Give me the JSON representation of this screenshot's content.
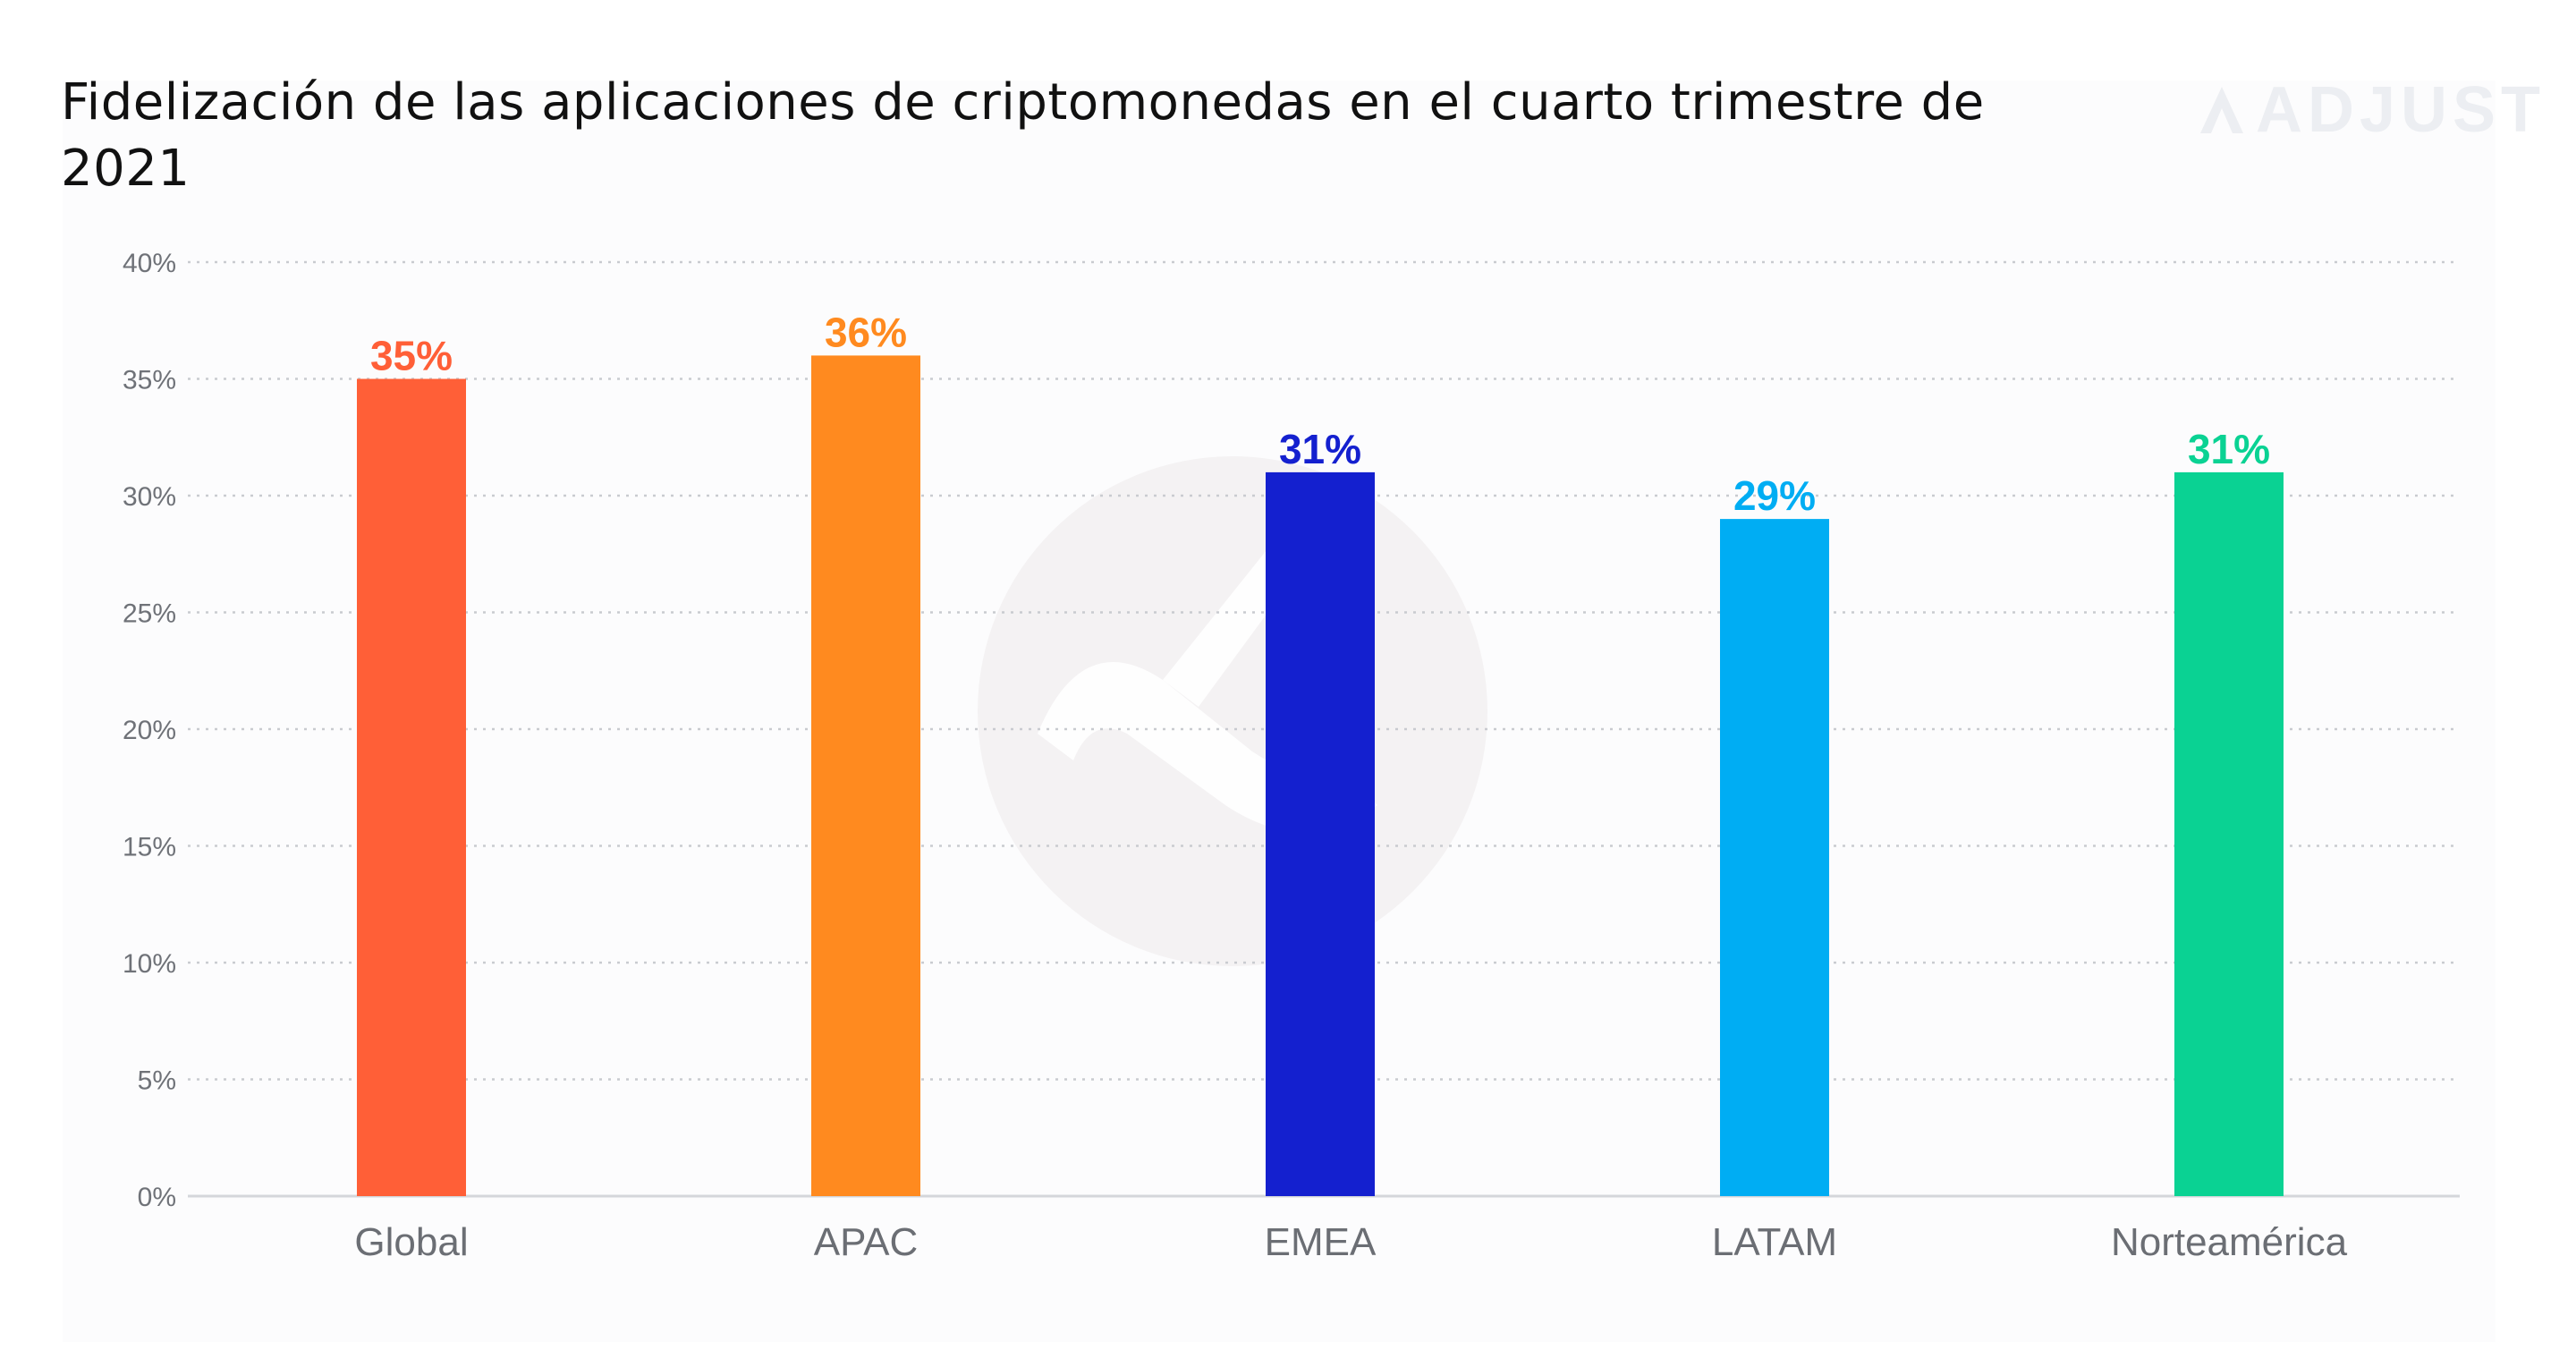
{
  "chart_data": {
    "type": "bar",
    "title": "Fidelización de las aplicaciones de criptomonedas en el cuarto trimestre de 2021",
    "categories": [
      "Global",
      "APAC",
      "EMEA",
      "LATAM",
      "Norteamérica"
    ],
    "values": [
      35,
      36,
      31,
      29,
      31
    ],
    "value_labels": [
      "35%",
      "36%",
      "31%",
      "29%",
      "31%"
    ],
    "colors": [
      "#FF5F37",
      "#FF8A1F",
      "#1420CF",
      "#00ADF3",
      "#0AD293"
    ],
    "ylim": [
      0,
      40
    ],
    "yticks": [
      0,
      5,
      10,
      15,
      20,
      25,
      30,
      35,
      40
    ],
    "ytick_labels": [
      "0%",
      "5%",
      "10%",
      "15%",
      "20%",
      "25%",
      "30%",
      "35%",
      "40%"
    ],
    "xlabel": "",
    "ylabel": "",
    "grid": true
  },
  "brand": {
    "logo_text": "ADJUST",
    "logo_icon": "adjust-logo-icon",
    "watermark_icon": "adjust-watermark-icon"
  }
}
